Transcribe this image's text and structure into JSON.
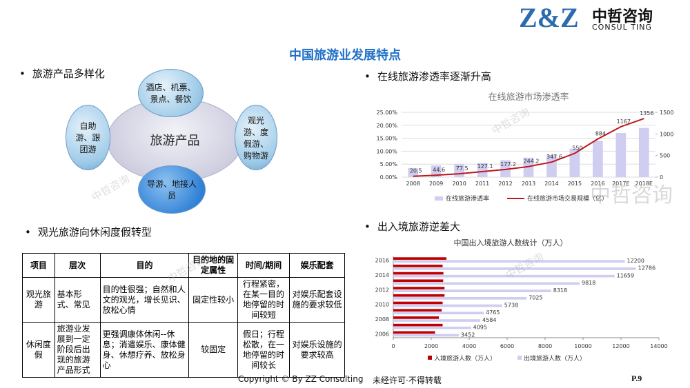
{
  "header": {
    "logo": "Z&Z",
    "company": "中哲咨询",
    "company_en": "CONSUL TING",
    "title": "中国旅游业发展特点"
  },
  "watermark": "中哲咨询",
  "bullets": [
    "旅游产品多样化",
    "在线旅游渗透率逐渐升高",
    "观光旅游向休闲度假转型",
    "出入境旅游逆差大"
  ],
  "diagram": {
    "center": "旅游产品",
    "top": "酒店、机票、景点、餐饮",
    "right": "观光游、度假游、购物游",
    "bottom": "导游、地接人员",
    "left": "自助游、跟团游"
  },
  "table": {
    "header": [
      "项目",
      "层次",
      "目的",
      "目的地的固定属性",
      "时间/期间",
      "娱乐配套"
    ],
    "rows": [
      [
        "观光旅游",
        "基本形式、常见",
        "目的性很强；自然和人文的观光，增长见识、放松心情",
        "固定性较小",
        "行程紧密，在某一目的地停留的时间较短",
        "对娱乐配套设施的要求较低"
      ],
      [
        "休闲度假",
        "旅游业发展到一定阶段后出现的旅游产品形式",
        "更强调康体休闲--休息；消遣娱乐、康体健身、休想疗养、放松身心",
        "较固定",
        "假日；行程松散，在一地停留的时间较长",
        "对娱乐设施的要求较高"
      ]
    ]
  },
  "chart_data": [
    {
      "type": "combo",
      "title": "在线旅游市场渗透率",
      "categories": [
        "2008",
        "2009",
        "2010",
        "2011",
        "2012",
        "2013",
        "2014",
        "2015",
        "2016",
        "2017E",
        "2018E"
      ],
      "series": [
        {
          "name": "在线旅游渗透率",
          "color": "#cfcdf0",
          "values": [
            3.5,
            4.5,
            5,
            5.5,
            6.5,
            7.5,
            8.5,
            11,
            14,
            17,
            19
          ]
        },
        {
          "name": "在线旅游市场交易规模（亿）",
          "color": "#c0151b",
          "axis": "y2",
          "values": [
            20.5,
            44.6,
            77.5,
            127.1,
            177.2,
            244.2,
            347.6,
            550,
            884,
            1167,
            1356
          ]
        }
      ],
      "ylim": [
        0,
        25
      ],
      "yticks": [
        {
          "value": 0,
          "label": "0.00%"
        },
        {
          "value": 5,
          "label": "5.00%"
        },
        {
          "value": 10,
          "label": "10.00%"
        },
        {
          "value": 15,
          "label": "15.00%"
        },
        {
          "value": 20,
          "label": "20.00%"
        },
        {
          "value": 25,
          "label": "25.00%"
        }
      ],
      "y2lim": [
        0,
        1500
      ],
      "y2ticks": [
        0,
        500,
        1000,
        1500
      ],
      "grid": true
    },
    {
      "type": "barh",
      "title": "中国出入境旅游人数统计（万人）",
      "categories": [
        "2006",
        null,
        "2008",
        null,
        "2010",
        null,
        "2012",
        null,
        "2014",
        null,
        "2016"
      ],
      "series": [
        {
          "name": "入境旅游人数（万人）",
          "color": "#c00000",
          "values": [
            2200,
            2600,
            2400,
            2550,
            2600,
            2700,
            2700,
            2630,
            2640,
            2600,
            2800
          ]
        },
        {
          "name": "出境旅游人数（万人）",
          "color": "#cfcdf0",
          "values": [
            3452,
            4095,
            4584,
            4765,
            5738,
            7025,
            8318,
            9818,
            11659,
            12786,
            12200
          ]
        }
      ],
      "xlim": [
        0,
        14000
      ],
      "xticks": [
        0,
        2000,
        4000,
        6000,
        8000,
        10000,
        12000,
        14000
      ]
    }
  ],
  "footer": {
    "copyright": "Copyright © By  ZZ Consulting",
    "notice": "未经许可·不得转载",
    "page": "P.9"
  }
}
